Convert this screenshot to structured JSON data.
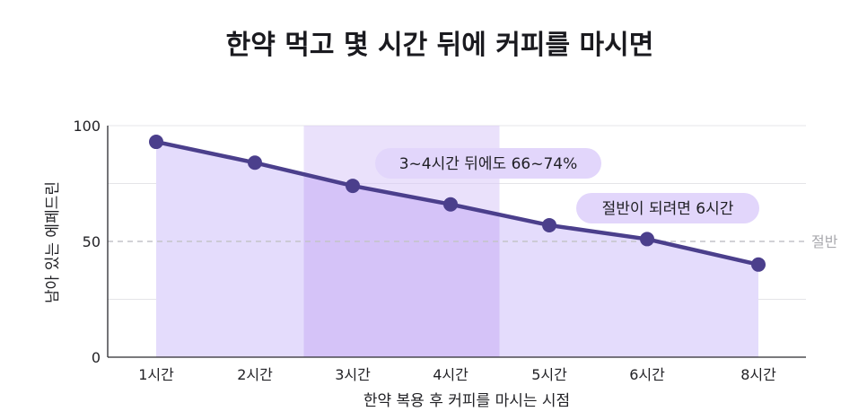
{
  "chart_data": {
    "type": "line",
    "title": "한약 먹고 몇 시간 뒤에 커피를 마시면",
    "xlabel": "한약 복용 후 커피를 마시는 시점",
    "ylabel": "남아 있는 에페드린",
    "categories": [
      "1시간",
      "2시간",
      "3시간",
      "4시간",
      "5시간",
      "6시간",
      "8시간"
    ],
    "x": [
      1,
      2,
      3,
      4,
      5,
      6,
      8
    ],
    "values": [
      93,
      84,
      74,
      66,
      57,
      51,
      40
    ],
    "ylim": [
      0,
      100
    ],
    "yticks": [
      0,
      50,
      100
    ],
    "grid": true,
    "area_fill": true,
    "highlight_range": {
      "from": "3시간",
      "to": "4시간"
    },
    "reference_line": {
      "value": 50,
      "label": "절반",
      "style": "dashed"
    },
    "annotations": [
      {
        "text": "3~4시간 뒤에도 66~74%"
      },
      {
        "text": "절반이 되려면 6시간"
      }
    ],
    "colors": {
      "line": "#4b3f8c",
      "area": "#e4dcfc",
      "highlight": "#d8c8f8",
      "callout_bg": "#e2d6fb",
      "grid": "#e4e4e8",
      "reference": "#c4c4c8"
    }
  }
}
